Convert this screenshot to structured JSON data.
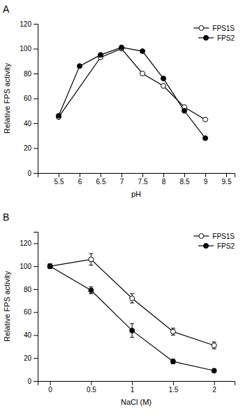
{
  "chart_data": [
    {
      "type": "line",
      "title": "A",
      "x_label": "pH",
      "y_label": "Relative FPS activity",
      "series": [
        {
          "name": "FPS1S",
          "color": "#000000",
          "marker": "circle-open",
          "line_style": "solid",
          "x": [
            5.5,
            6.5,
            7.0,
            7.5,
            8.0,
            8.5,
            9.0
          ],
          "values": [
            45,
            93,
            100,
            80,
            70,
            53,
            43
          ]
        },
        {
          "name": "FPS2",
          "color": "#000000",
          "marker": "circle",
          "line_style": "solid",
          "x": [
            5.5,
            6.0,
            6.5,
            7.0,
            7.5,
            8.0,
            8.5,
            9.0
          ],
          "values": [
            46,
            86,
            95,
            101,
            98,
            76,
            50,
            28
          ]
        }
      ],
      "xlim": [
        5.0,
        9.7
      ],
      "ylim": [
        0,
        120
      ],
      "xticks": [
        5.5,
        6,
        6.5,
        7,
        7.5,
        8,
        8.5,
        9,
        9.5
      ],
      "yticks": [
        0,
        20,
        40,
        60,
        80,
        100,
        120
      ],
      "grid": false,
      "legend": "upper right"
    },
    {
      "type": "line",
      "title": "B",
      "x_label": "NaCl (M)",
      "y_label": "Relative FPS activity",
      "series": [
        {
          "name": "FPS1S",
          "color": "#000000",
          "marker": "circle-open",
          "line_style": "solid",
          "x": [
            0,
            0.5,
            1.0,
            1.5,
            2.0
          ],
          "values": [
            100,
            106,
            72,
            43,
            31
          ],
          "yerr": [
            2,
            5,
            4,
            3,
            3
          ]
        },
        {
          "name": "FPS2",
          "color": "#000000",
          "marker": "circle",
          "line_style": "solid",
          "x": [
            0,
            0.5,
            1.0,
            1.5,
            2.0
          ],
          "values": [
            100,
            79,
            44,
            17,
            9
          ],
          "yerr": [
            2,
            3,
            6,
            2,
            1
          ]
        }
      ],
      "xlim": [
        -0.15,
        2.25
      ],
      "ylim": [
        0,
        130
      ],
      "xticks": [
        0,
        0.5,
        1,
        1.5,
        2
      ],
      "yticks": [
        0,
        20,
        40,
        60,
        80,
        100,
        120
      ],
      "grid": false,
      "legend": "upper right"
    }
  ]
}
